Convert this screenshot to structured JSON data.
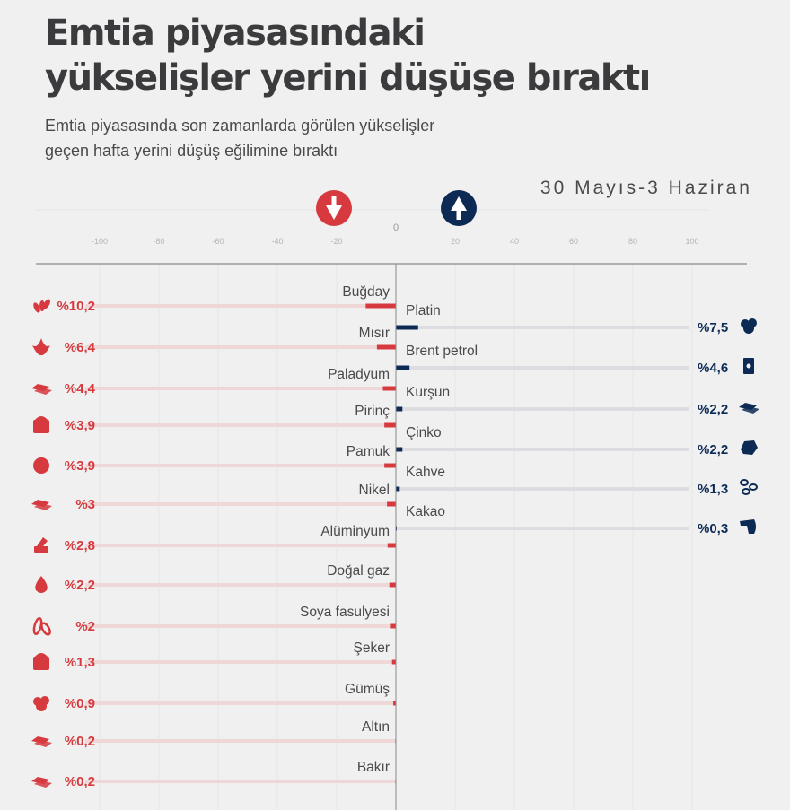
{
  "header": {
    "title_line1": "Emtia piyasasındaki",
    "title_line2": "yükselişler yerini düşüşe bıraktı",
    "subtitle_line1": "Emtia piyasasında son zamanlarda görülen yükselişler",
    "subtitle_line2": "geçen hafta yerini düşüş eğilimine bıraktı",
    "date_range": "30 Mayıs-3 Haziran"
  },
  "colors": {
    "background": "#f0f0f0",
    "negative": "#d63a3f",
    "negative_track": "#efd6d7",
    "positive": "#0d2a55",
    "positive_track": "#dcdde0",
    "text": "#4a4a4c"
  },
  "chart_data": {
    "type": "bar",
    "orientation": "horizontal-diverging",
    "title": "Emtia piyasasındaki yükselişler yerini düşüşe bıraktı",
    "subtitle": "Emtia piyasasında son zamanlarda görülen yükselişler geçen hafta yerini düşüş eğilimine bıraktı",
    "period": "30 Mayıs-3 Haziran",
    "xlim": [
      -100,
      100
    ],
    "x_ticks": [
      "-100",
      "-80",
      "-60",
      "-40",
      "-20",
      "0",
      "20",
      "40",
      "60",
      "80",
      "100"
    ],
    "x_tick_values": [
      -100,
      -80,
      -60,
      -40,
      -20,
      0,
      20,
      40,
      60,
      80,
      100
    ],
    "grid": true,
    "legend": [
      {
        "name": "down",
        "icon": "arrow-down-circle-icon",
        "color": "#d63a3f"
      },
      {
        "name": "up",
        "icon": "arrow-up-circle-icon",
        "color": "#0d2a55"
      }
    ],
    "series": [
      {
        "name": "Düşüş",
        "color": "#d63a3f",
        "categories": [
          "Buğday",
          "Mısır",
          "Paladyum",
          "Pirinç",
          "Pamuk",
          "Nikel",
          "Alüminyum",
          "Doğal gaz",
          "Soya fasulyesi",
          "Şeker",
          "Gümüş",
          "Altın",
          "Bakır"
        ],
        "values": [
          -10.2,
          -6.4,
          -4.4,
          -3.9,
          -3.9,
          -3,
          -2.8,
          -2.2,
          -2,
          -1.3,
          -0.9,
          -0.2,
          -0.2
        ],
        "labels": [
          "%10,2",
          "%6,4",
          "%4,4",
          "%3,9",
          "%3,9",
          "%3",
          "%2,8",
          "%2,2",
          "%2",
          "%1,3",
          "%0,9",
          "%0,2",
          "%0,2"
        ],
        "icons": [
          "wheat-icon",
          "corn-icon",
          "metal-bar-icon",
          "rice-sack-icon",
          "cotton-icon",
          "metal-bar-icon",
          "aluminium-icon",
          "gas-flame-icon",
          "soybean-icon",
          "sugar-sack-icon",
          "silver-nugget-icon",
          "gold-bar-icon",
          "copper-bar-icon"
        ]
      },
      {
        "name": "Yükseliş",
        "color": "#0d2a55",
        "categories": [
          "Platin",
          "Brent petrol",
          "Kurşun",
          "Çinko",
          "Kahve",
          "Kakao"
        ],
        "values": [
          7.5,
          4.6,
          2.2,
          2.2,
          1.3,
          0.3
        ],
        "labels": [
          "%7,5",
          "%4,6",
          "%2,2",
          "%2,2",
          "%1,3",
          "%0,3"
        ],
        "icons": [
          "platinum-nugget-icon",
          "oil-barrel-icon",
          "lead-bar-icon",
          "zinc-ore-icon",
          "coffee-beans-icon",
          "cocoa-icon"
        ]
      }
    ]
  }
}
